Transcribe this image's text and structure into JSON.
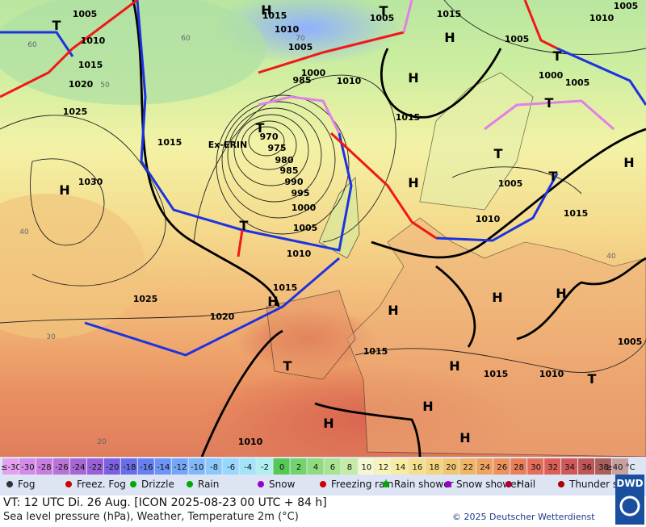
{
  "map": {
    "pressure_labels": [
      "1005",
      "1010",
      "1015",
      "1020",
      "1025",
      "1030",
      "1015",
      "970",
      "975",
      "980",
      "985",
      "990",
      "995",
      "1000",
      "1005",
      "1010",
      "1015",
      "1020",
      "1025",
      "1015",
      "1010",
      "1005",
      "1000",
      "985",
      "1010",
      "1005",
      "1015",
      "1015",
      "1005",
      "1010",
      "1005",
      "1000",
      "1005",
      "1005",
      "1010",
      "1015",
      "1015",
      "1015",
      "1010",
      "1005",
      "1010"
    ],
    "centers": [
      "H",
      "H",
      "H",
      "H",
      "H",
      "H",
      "H",
      "H",
      "H",
      "H",
      "H",
      "H",
      "H",
      "H",
      "T",
      "T",
      "T",
      "T",
      "T",
      "T",
      "T",
      "T",
      "T",
      "T"
    ],
    "system_name": "Ex-ERIN",
    "lat_labels": [
      "60",
      "50",
      "40",
      "30",
      "20",
      "70",
      "60",
      "40"
    ]
  },
  "legend": {
    "temperature_scale": [
      {
        "label": "≤-30",
        "color": "#e6a0f0"
      },
      {
        "label": "-30",
        "color": "#d58ce8"
      },
      {
        "label": "-28",
        "color": "#c87ee0"
      },
      {
        "label": "-26",
        "color": "#b872d8"
      },
      {
        "label": "-24",
        "color": "#a866d4"
      },
      {
        "label": "-22",
        "color": "#9a60d8"
      },
      {
        "label": "-20",
        "color": "#7c60e0"
      },
      {
        "label": "-18",
        "color": "#6a6ce8"
      },
      {
        "label": "-16",
        "color": "#6680f0"
      },
      {
        "label": "-14",
        "color": "#6c94f4"
      },
      {
        "label": "-12",
        "color": "#74a6f8"
      },
      {
        "label": "-10",
        "color": "#80b8fa"
      },
      {
        "label": "-8",
        "color": "#8cc8fc"
      },
      {
        "label": "-6",
        "color": "#98d8fc"
      },
      {
        "label": "-4",
        "color": "#a4e4f8"
      },
      {
        "label": "-2",
        "color": "#b0eef0"
      },
      {
        "label": "0",
        "color": "#56c856"
      },
      {
        "label": "2",
        "color": "#72d46a"
      },
      {
        "label": "4",
        "color": "#8edc7e"
      },
      {
        "label": "6",
        "color": "#a8e492"
      },
      {
        "label": "8",
        "color": "#c4eca4"
      },
      {
        "label": "10",
        "color": "#f4f8d0"
      },
      {
        "label": "12",
        "color": "#f8f4b8"
      },
      {
        "label": "14",
        "color": "#f8eca0"
      },
      {
        "label": "16",
        "color": "#f6e08c"
      },
      {
        "label": "18",
        "color": "#f4d47c"
      },
      {
        "label": "20",
        "color": "#f2c670"
      },
      {
        "label": "22",
        "color": "#f0b666"
      },
      {
        "label": "24",
        "color": "#eea460"
      },
      {
        "label": "26",
        "color": "#ec925c"
      },
      {
        "label": "28",
        "color": "#e8805a"
      },
      {
        "label": "30",
        "color": "#e46e58"
      },
      {
        "label": "32",
        "color": "#dc6058"
      },
      {
        "label": "34",
        "color": "#d05858"
      },
      {
        "label": "36",
        "color": "#c05656"
      },
      {
        "label": "38",
        "color": "#a86058"
      },
      {
        "label": "≥40 °C",
        "color": "#c8a0a0"
      }
    ],
    "symbols": [
      "Fog",
      "Freez. Fog",
      "Drizzle",
      "Rain",
      "Snow",
      "Freezing rain",
      "Rain shower",
      "Snow shower",
      "Hail",
      "Thunder storm"
    ]
  },
  "footer": {
    "valid_time": "VT: 12 UTC Di.  26 Aug. [ICON 2025-08-23  00 UTC + 84 h]",
    "description": "Sea level pressure (hPa), Weather, Temperature 2m (°C)",
    "copyright": "© 2025 Deutscher Wetterdienst",
    "logo": "DWD"
  }
}
